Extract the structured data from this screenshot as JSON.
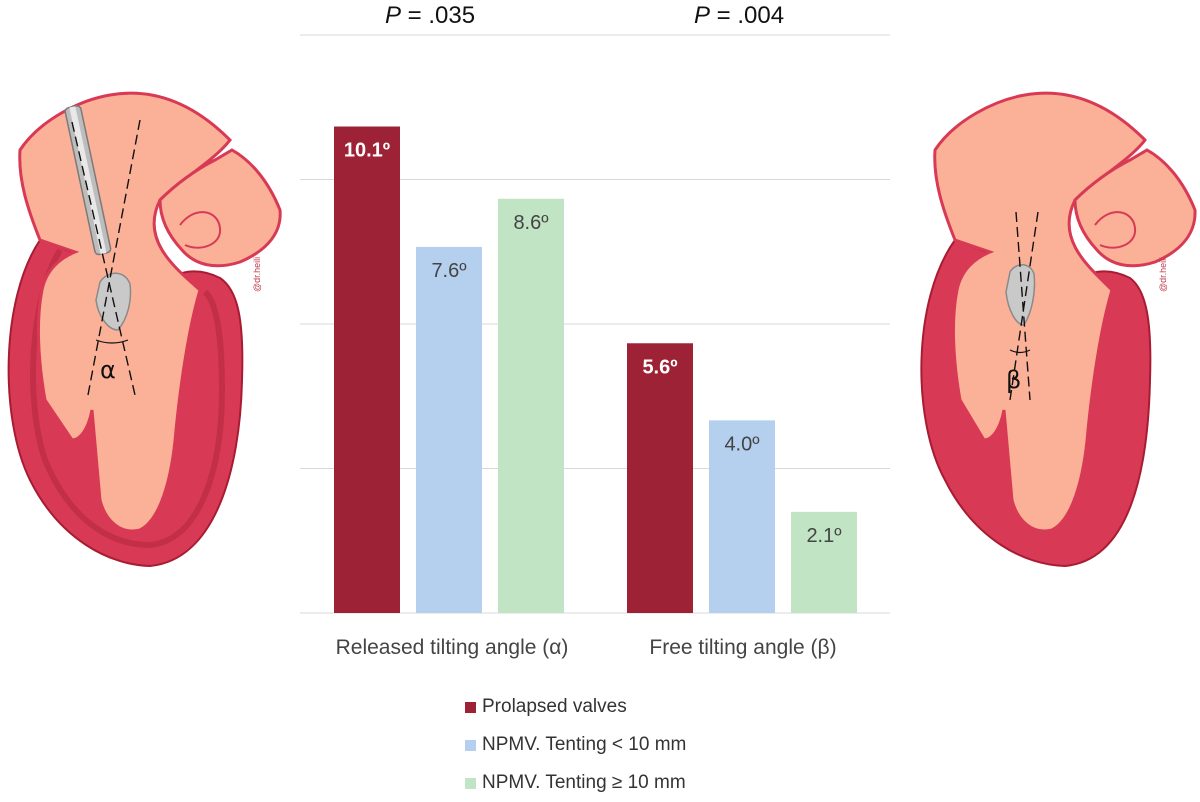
{
  "p_values": {
    "left": {
      "label": "P",
      "value": " = .035"
    },
    "right": {
      "label": "P",
      "value": " = .004"
    }
  },
  "illustrations": {
    "left_angle": "α",
    "right_angle": "β",
    "watermark": "@dr.heili"
  },
  "colors": {
    "prolapsed": "#9e2236",
    "tenting_lt10": "#b4d0ee",
    "tenting_ge10": "#c0e4c4",
    "heart_inner": "#fbb197",
    "heart_wall": "#d83a55",
    "heart_wall_dark": "#a81c33",
    "grid": "#d9d9d9"
  },
  "chart_data": {
    "type": "bar",
    "categories": [
      "Released tilting angle (α)",
      "Free tilting angle (β)"
    ],
    "series": [
      {
        "name": "Prolapsed valves",
        "values": [
          10.1,
          5.6
        ],
        "labels": [
          "10.1º",
          "5.6º"
        ]
      },
      {
        "name": "NPMV. Tenting < 10 mm",
        "values": [
          7.6,
          4.0
        ],
        "labels": [
          "7.6º",
          "4.0º"
        ]
      },
      {
        "name": "NPMV. Tenting ≥ 10 mm",
        "values": [
          8.6,
          2.1
        ],
        "labels": [
          "8.6º",
          "2.1º"
        ]
      }
    ],
    "ylim": [
      0,
      12
    ],
    "grid": true,
    "legend": "bottom"
  }
}
